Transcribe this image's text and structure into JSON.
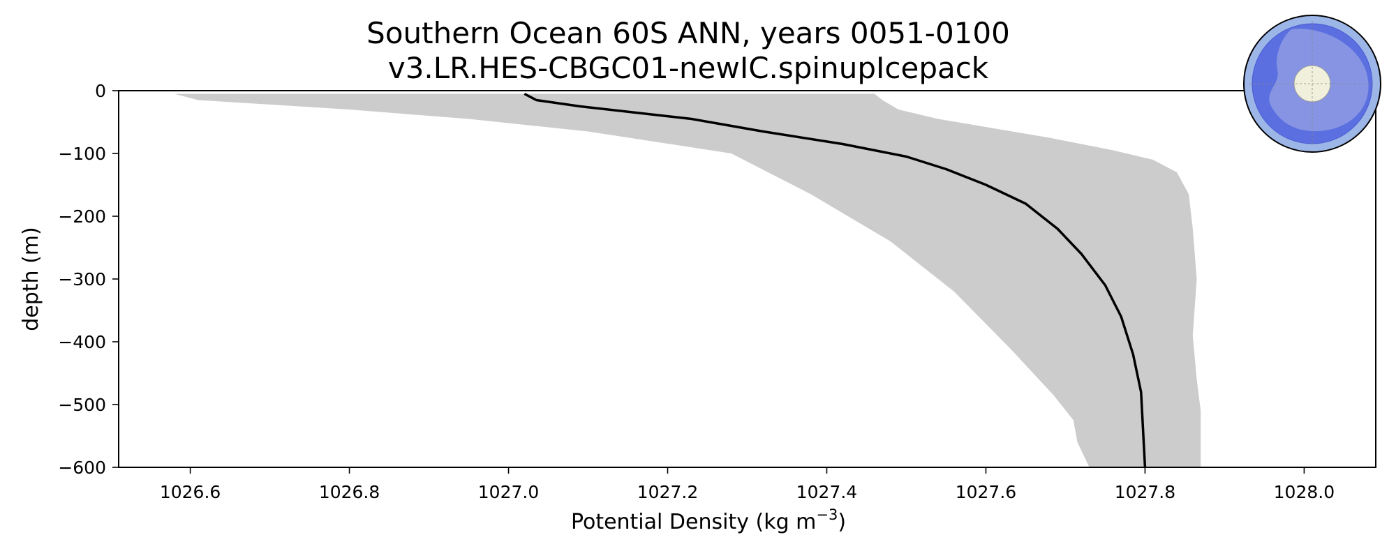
{
  "chart_data": {
    "type": "line",
    "title": "Southern Ocean 60S ANN, years 0051-0100",
    "subtitle": "v3.LR.HES-CBGC01-newIC.spinupIcepack",
    "xlabel_prefix": "Potential Density (kg m",
    "xlabel_exponent": "−3",
    "xlabel_suffix": ")",
    "ylabel": "depth (m)",
    "xlim": [
      1026.51,
      1028.09
    ],
    "ylim": [
      -600,
      0
    ],
    "xticks": [
      1026.6,
      1026.8,
      1027.0,
      1027.2,
      1027.4,
      1027.6,
      1027.8,
      1028.0
    ],
    "xtick_labels": [
      "1026.6",
      "1026.8",
      "1027.0",
      "1027.2",
      "1027.4",
      "1027.6",
      "1027.8",
      "1028.0"
    ],
    "yticks": [
      0,
      -100,
      -200,
      -300,
      -400,
      -500,
      -600
    ],
    "ytick_labels": [
      "0",
      "−100",
      "−200",
      "−300",
      "−400",
      "−500",
      "−600"
    ],
    "grid": false,
    "series": [
      {
        "kind": "line",
        "color": "#000000",
        "x": [
          1027.02,
          1027.035,
          1027.09,
          1027.16,
          1027.23,
          1027.32,
          1027.42,
          1027.5,
          1027.55,
          1027.6,
          1027.65,
          1027.69,
          1027.72,
          1027.75,
          1027.77,
          1027.785,
          1027.795,
          1027.8
        ],
        "y": [
          -5,
          -15,
          -25,
          -35,
          -45,
          -65,
          -85,
          -105,
          -125,
          -150,
          -180,
          -220,
          -260,
          -310,
          -360,
          -420,
          -480,
          -600
        ]
      },
      {
        "kind": "band",
        "color": "#cccccc",
        "upper_x": [
          1027.46,
          1027.47,
          1027.49,
          1027.54,
          1027.68,
          1027.76,
          1027.81,
          1027.84,
          1027.855,
          1027.86,
          1027.865,
          1027.86,
          1027.865,
          1027.87,
          1027.87
        ],
        "upper_y": [
          -5,
          -15,
          -30,
          -45,
          -75,
          -95,
          -110,
          -130,
          -165,
          -220,
          -300,
          -390,
          -460,
          -510,
          -600
        ],
        "lower_x": [
          1026.58,
          1026.61,
          1026.8,
          1026.95,
          1027.1,
          1027.28,
          1027.38,
          1027.48,
          1027.56,
          1027.63,
          1027.685,
          1027.71,
          1027.715,
          1027.73
        ],
        "lower_y": [
          -5,
          -15,
          -30,
          -45,
          -65,
          -100,
          -165,
          -240,
          -320,
          -410,
          -485,
          -525,
          -560,
          -600
        ]
      }
    ],
    "inset": {
      "description_icon": "antarctica-region-map-icon",
      "colors": {
        "ocean": "#9db6e8",
        "region": "#5b6fe0",
        "land": "#8e9be3",
        "pole_cap": "#f0f0dc"
      }
    }
  }
}
